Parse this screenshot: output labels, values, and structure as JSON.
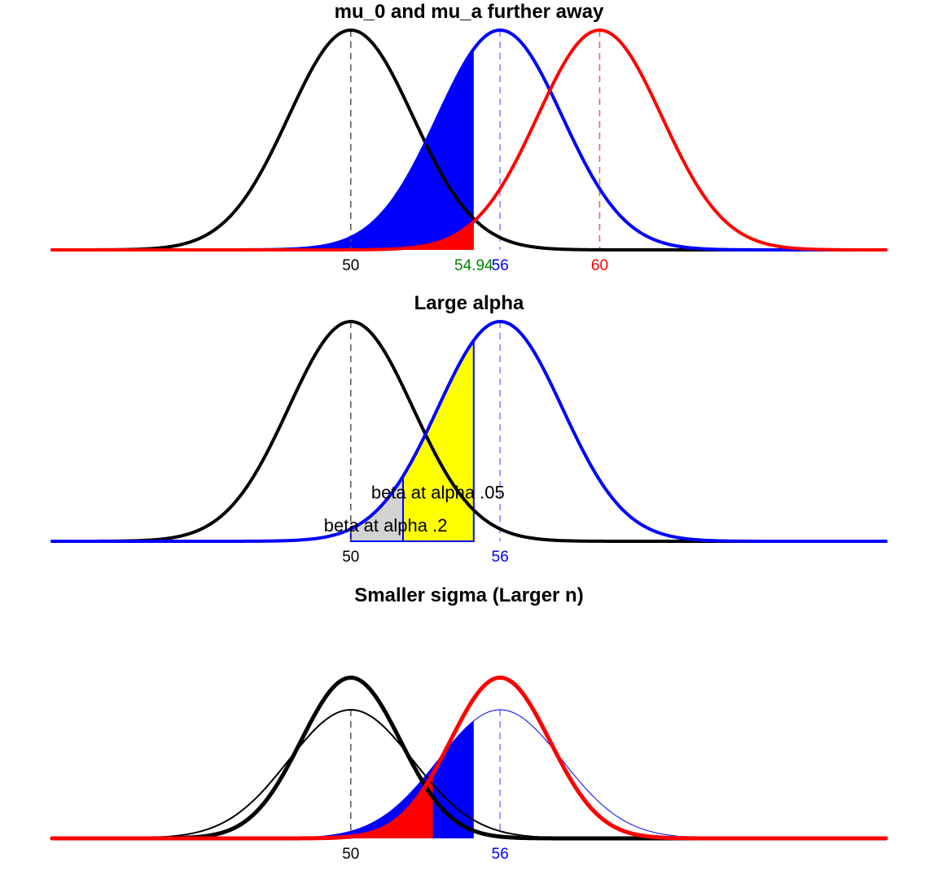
{
  "chart_data": [
    {
      "type": "line",
      "title": "mu_0 and mu_a further away",
      "xlim": [
        38,
        71.5
      ],
      "sigma": 2.5,
      "curves": [
        {
          "mean": 50,
          "color": "#000000"
        },
        {
          "mean": 56,
          "color": "#0000ff"
        },
        {
          "mean": 60,
          "color": "#ff0000"
        }
      ],
      "shaded": [
        {
          "mean": 56,
          "to": 54.94,
          "color": "#0000ff"
        },
        {
          "mean": 60,
          "to": 54.94,
          "color": "#ff0000"
        }
      ],
      "vlines": [
        {
          "x": 50,
          "color": "#555555"
        },
        {
          "x": 56,
          "color": "#8080ff"
        },
        {
          "x": 60,
          "color": "#e06060"
        }
      ],
      "tick_labels": [
        {
          "x": 50,
          "label": "50",
          "color": "#000000"
        },
        {
          "x": 54.94,
          "label": "54.94",
          "color": "#008000"
        },
        {
          "x": 56,
          "label": "56",
          "color": "#0000ff"
        },
        {
          "x": 60,
          "label": "60",
          "color": "#ff0000"
        }
      ]
    },
    {
      "type": "line",
      "title": "Large alpha",
      "xlim": [
        38,
        71.5
      ],
      "sigma": 2.5,
      "curves": [
        {
          "mean": 50,
          "color": "#000000"
        },
        {
          "mean": 56,
          "color": "#0000ff"
        }
      ],
      "shaded": [
        {
          "mean": 56,
          "from": 52.1,
          "to": 54.94,
          "color": "#ffff00",
          "outline": "#0000ff"
        },
        {
          "mean": 56,
          "from": 50,
          "to": 52.1,
          "color": "#d3d3d3",
          "outline": "#0000ff"
        }
      ],
      "vlines": [
        {
          "x": 50,
          "color": "#555555"
        },
        {
          "x": 56,
          "color": "#8080ff"
        }
      ],
      "tick_labels": [
        {
          "x": 50,
          "label": "50",
          "color": "#000000"
        },
        {
          "x": 56,
          "label": "56",
          "color": "#0000ff"
        }
      ],
      "annotations": [
        {
          "x": 53.5,
          "level": 0.22,
          "text": "beta at alpha .05"
        },
        {
          "x": 51.4,
          "level": 0.07,
          "text": "beta at alpha .2"
        }
      ]
    },
    {
      "type": "line",
      "title": "Smaller sigma (Larger n)",
      "xlim": [
        38,
        71.5
      ],
      "sigma": 2.5,
      "sigma_small": 2.0,
      "curves": [
        {
          "mean": 50,
          "color": "#000000",
          "sigma": 2.5
        },
        {
          "mean": 56,
          "color": "#0000ff",
          "sigma": 2.5
        },
        {
          "mean": 50,
          "color": "#000000",
          "sigma": 2.0
        },
        {
          "mean": 56,
          "color": "#ff0000",
          "sigma": 2.0
        }
      ],
      "shaded": [
        {
          "mean": 56,
          "sigma": 2.5,
          "to": 54.94,
          "color": "#0000ff"
        },
        {
          "mean": 56,
          "sigma": 2.0,
          "to": 53.3,
          "color": "#ff0000"
        }
      ],
      "vlines": [
        {
          "x": 50,
          "color": "#555555"
        },
        {
          "x": 56,
          "color": "#8080ff"
        }
      ],
      "tick_labels": [
        {
          "x": 50,
          "label": "50",
          "color": "#000000"
        },
        {
          "x": 56,
          "label": "56",
          "color": "#0000ff"
        }
      ]
    }
  ]
}
